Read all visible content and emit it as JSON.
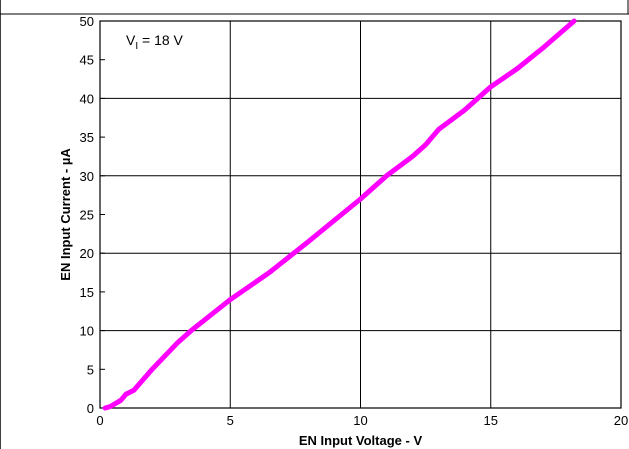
{
  "chart_data": {
    "type": "line",
    "title": "",
    "xlabel": "EN Input Voltage - V",
    "ylabel": "EN Input Current - µA",
    "xlim": [
      0,
      20
    ],
    "ylim": [
      0,
      50
    ],
    "xticks": [
      "0",
      "5",
      "10",
      "15",
      "20"
    ],
    "yticks": [
      "0",
      "5",
      "10",
      "15",
      "20",
      "25",
      "30",
      "35",
      "40",
      "45",
      "50"
    ],
    "grid": true,
    "annotation": {
      "main": "V",
      "sub": "I",
      "rest": " = 18 V"
    },
    "series": [
      {
        "name": "",
        "color": "#ff00ff",
        "x": [
          0.2,
          0.4,
          0.8,
          1.0,
          1.3,
          2.0,
          3.0,
          3.5,
          5.0,
          6.5,
          8.0,
          10.0,
          11.0,
          12.0,
          12.5,
          13.0,
          14.0,
          15.0,
          16.0,
          17.0,
          18.2
        ],
        "y": [
          0,
          0.2,
          1.0,
          1.8,
          2.3,
          5.0,
          8.5,
          10.0,
          14.0,
          17.5,
          21.5,
          27.0,
          30.0,
          32.5,
          34.0,
          36.0,
          38.5,
          41.5,
          43.8,
          46.5,
          50.0
        ]
      }
    ]
  }
}
